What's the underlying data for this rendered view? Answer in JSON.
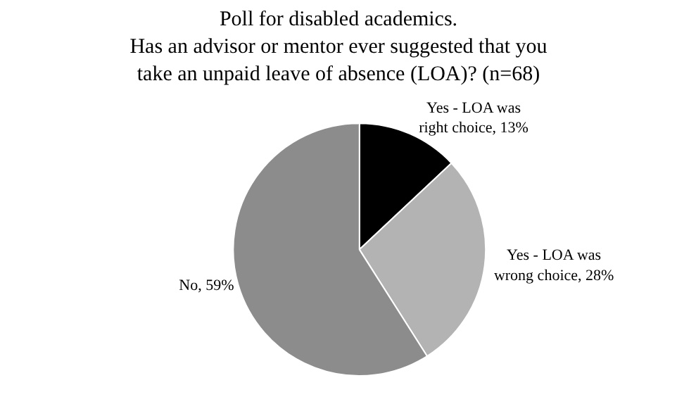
{
  "chart_data": {
    "type": "pie",
    "title": "Poll for disabled academics.\nHas an advisor or mentor ever suggested that you\ntake an unpaid leave of absence (LOA)? (n=68)",
    "categories": [
      "Yes - LOA was\nright choice",
      "Yes - LOA was\nwrong choice",
      "No"
    ],
    "value_labels": [
      "13%",
      "28%",
      "59%"
    ],
    "values": [
      13,
      28,
      59
    ],
    "colors": [
      "#000000",
      "#b3b3b3",
      "#8c8c8c"
    ],
    "legend": false
  }
}
